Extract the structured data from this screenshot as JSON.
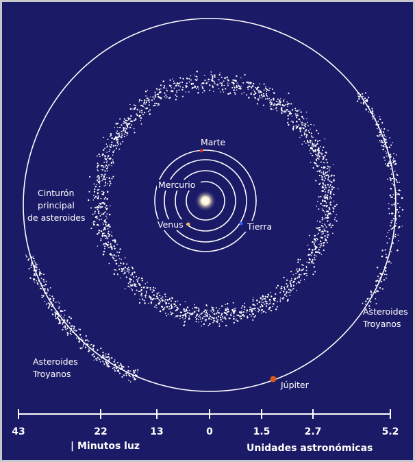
{
  "labels": {
    "mars": "Marte",
    "mercury": "Mercurio",
    "venus": "Venus",
    "earth": "Tierra",
    "main_belt": [
      "Cinturón",
      "principal",
      "de asteroides"
    ],
    "trojans_left": [
      "Asteroides",
      "Troyanos"
    ],
    "trojans_right": [
      "Asteroides",
      "Troyanos"
    ],
    "jupiter": "Júpiter"
  },
  "scale": {
    "ticks": [
      "43",
      "22",
      "13",
      "0",
      "1.5",
      "2.7",
      "5.2"
    ],
    "left_caption": "| Minutos luz",
    "right_caption": "Unidades astronómicas"
  }
}
